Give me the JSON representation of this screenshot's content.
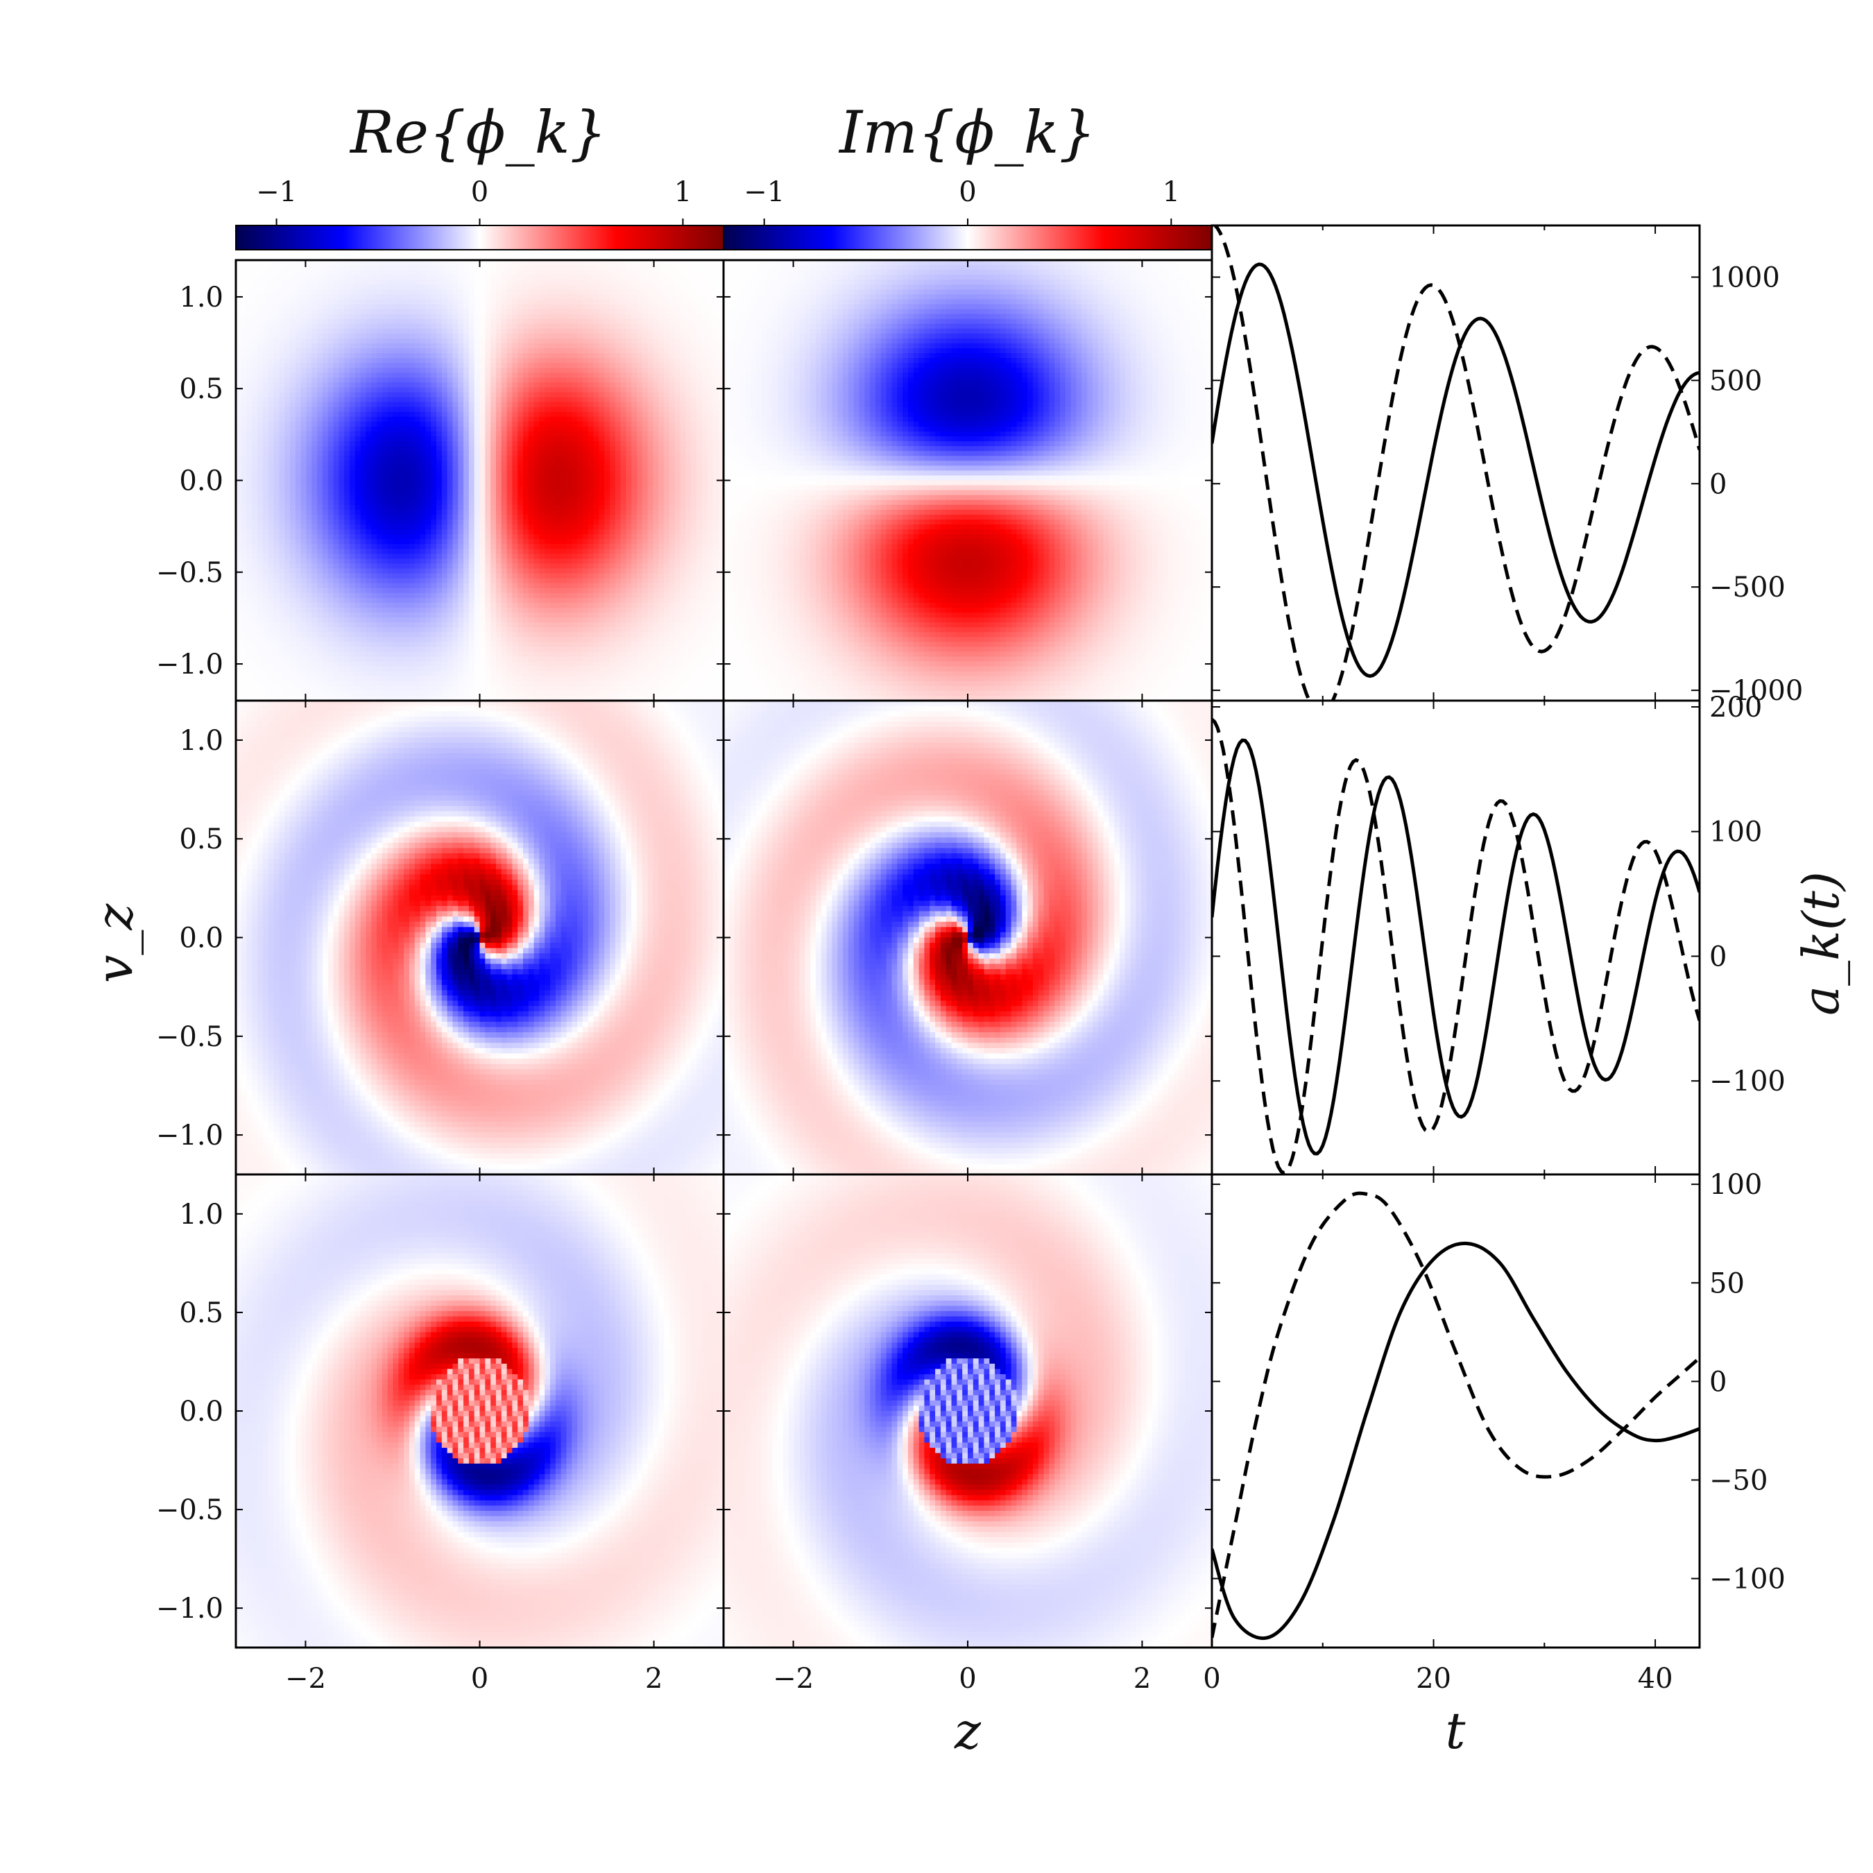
{
  "chart_data": [
    {
      "type": "heatmap",
      "panel": "row1-real",
      "title": "Re{ϕ_k}",
      "ylabel": "v_z",
      "xlim": [
        -2.8,
        2.8
      ],
      "ylim": [
        -1.2,
        1.2
      ],
      "xticks": [
        "−2",
        "0",
        "2"
      ],
      "yticks": [
        "1.0",
        "0.5",
        "0.0",
        "−0.5",
        "−1.0"
      ],
      "colorbar": {
        "ticks": [
          "−1",
          "0",
          "1"
        ],
        "range": [
          -1.2,
          1.2
        ]
      },
      "pattern": "dipole",
      "angle_deg": 0
    },
    {
      "type": "heatmap",
      "panel": "row1-imag",
      "title": "Im{ϕ_k}",
      "xlim": [
        -2.8,
        2.8
      ],
      "ylim": [
        -1.2,
        1.2
      ],
      "colorbar": {
        "ticks": [
          "−1",
          "0",
          "1"
        ],
        "range": [
          -1.2,
          1.2
        ]
      },
      "pattern": "dipole",
      "angle_deg": -90
    },
    {
      "type": "line",
      "panel": "row1-ak",
      "xlim": [
        0,
        44
      ],
      "ylim": [
        -1050,
        1250
      ],
      "yticks": [
        "1000",
        "500",
        "0",
        "−500",
        "−1000"
      ],
      "series": [
        {
          "style": "solid",
          "amplitude": [
            1120,
            540
          ],
          "omega": 0.315,
          "phase_deg": -80
        },
        {
          "style": "dashed",
          "amplitude": [
            1260,
            600
          ],
          "omega": 0.315,
          "phase_deg": 0
        }
      ]
    },
    {
      "type": "heatmap",
      "panel": "row2-real",
      "ylabel": "v_z",
      "xlim": [
        -2.8,
        2.8
      ],
      "ylim": [
        -1.2,
        1.2
      ],
      "yticks": [
        "1.0",
        "0.5",
        "0.0",
        "−0.5",
        "−1.0"
      ],
      "pattern": "spiral",
      "angle_deg": 0
    },
    {
      "type": "heatmap",
      "panel": "row2-imag",
      "xlim": [
        -2.8,
        2.8
      ],
      "ylim": [
        -1.2,
        1.2
      ],
      "pattern": "spiral",
      "angle_deg": 180
    },
    {
      "type": "line",
      "panel": "row2-ak",
      "ylabel": "a_k(t)",
      "xlim": [
        0,
        44
      ],
      "ylim": [
        -175,
        205
      ],
      "yticks": [
        "200",
        "100",
        "0",
        "−100"
      ],
      "series": [
        {
          "style": "solid",
          "amplitude": [
            180,
            80
          ],
          "omega": 0.48,
          "phase_deg": -80
        },
        {
          "style": "dashed",
          "amplitude": [
            190,
            80
          ],
          "omega": 0.48,
          "phase_deg": 0
        }
      ]
    },
    {
      "type": "heatmap",
      "panel": "row3-real",
      "xlabel": "",
      "ylabel": "v_z",
      "xlim": [
        -2.8,
        2.8
      ],
      "ylim": [
        -1.2,
        1.2
      ],
      "xticks": [
        "−2",
        "0",
        "2"
      ],
      "yticks": [
        "1.0",
        "0.5",
        "0.0",
        "−0.5",
        "−1.0"
      ],
      "pattern": "ring",
      "angle_deg": 0
    },
    {
      "type": "heatmap",
      "panel": "row3-imag",
      "xlabel": "z",
      "xlim": [
        -2.8,
        2.8
      ],
      "ylim": [
        -1.2,
        1.2
      ],
      "xticks": [
        "−2",
        "0",
        "2"
      ],
      "pattern": "ring",
      "angle_deg": 180
    },
    {
      "type": "line",
      "panel": "row3-ak",
      "xlabel": "t",
      "xlim": [
        0,
        44
      ],
      "ylim": [
        -135,
        105
      ],
      "xticks": [
        "0",
        "20",
        "40"
      ],
      "yticks": [
        "100",
        "50",
        "0",
        "−50",
        "−100"
      ],
      "series": [
        {
          "style": "solid",
          "points": [
            [
              0,
              -85
            ],
            [
              2,
              -120
            ],
            [
              5,
              -130
            ],
            [
              8,
              -112
            ],
            [
              11,
              -70
            ],
            [
              14,
              -15
            ],
            [
              17,
              35
            ],
            [
              20,
              62
            ],
            [
              23,
              70
            ],
            [
              26,
              60
            ],
            [
              29,
              32
            ],
            [
              32,
              5
            ],
            [
              35,
              -15
            ],
            [
              38,
              -27
            ],
            [
              40,
              -30
            ],
            [
              42,
              -28
            ],
            [
              44,
              -24
            ]
          ]
        },
        {
          "style": "dashed",
          "points": [
            [
              0,
              -130
            ],
            [
              2,
              -75
            ],
            [
              4,
              -20
            ],
            [
              6,
              25
            ],
            [
              9,
              70
            ],
            [
              12,
              92
            ],
            [
              14,
              95
            ],
            [
              16,
              88
            ],
            [
              19,
              58
            ],
            [
              22,
              15
            ],
            [
              25,
              -25
            ],
            [
              28,
              -45
            ],
            [
              31,
              -48
            ],
            [
              34,
              -40
            ],
            [
              37,
              -25
            ],
            [
              40,
              -8
            ],
            [
              42,
              2
            ],
            [
              44,
              12
            ]
          ]
        }
      ]
    }
  ],
  "labels": {
    "title_re": "Re{ϕ_k}",
    "title_im": "Im{ϕ_k}",
    "ylabel_vz": "v_z",
    "xlabel_z": "z",
    "xlabel_t": "t",
    "ylabel_ak": "a_k(t)"
  },
  "colors": {
    "negative": "#00008b",
    "neg_mid": "#0000ff",
    "zero": "#ffffff",
    "pos_mid": "#ff0000",
    "positive": "#8b0000",
    "line": "#000000"
  }
}
